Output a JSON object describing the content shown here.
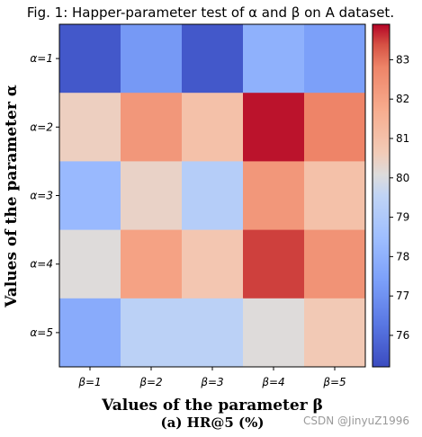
{
  "chart_data": {
    "type": "heatmap",
    "title": "Fig. 1: Happer-parameter test of α and β on A dataset.",
    "xlabel": "Values of the parameter β",
    "ylabel": "Values of the parameter α",
    "caption": "(a) HR@5 (%)",
    "x_categories": [
      "β=1",
      "β=2",
      "β=3",
      "β=4",
      "β=5"
    ],
    "y_categories": [
      "α=1",
      "α=2",
      "α=3",
      "α=4",
      "α=5"
    ],
    "values": [
      [
        75.5,
        77.2,
        75.5,
        78.0,
        77.4
      ],
      [
        80.5,
        82.3,
        81.0,
        83.8,
        82.8
      ],
      [
        78.3,
        80.4,
        79.2,
        82.3,
        81.0
      ],
      [
        80.1,
        82.0,
        80.8,
        83.5,
        82.4
      ],
      [
        77.8,
        79.4,
        79.4,
        80.1,
        80.7
      ]
    ],
    "colorbar": {
      "min": 75.2,
      "max": 83.9,
      "ticks": [
        76,
        77,
        78,
        79,
        80,
        81,
        82,
        83
      ],
      "colormap": "coolwarm"
    },
    "colors": {
      "low": "#3b4cc0",
      "mid": "#dddddd",
      "high": "#b40426"
    }
  },
  "watermark": "CSDN @JinyuZ1996"
}
